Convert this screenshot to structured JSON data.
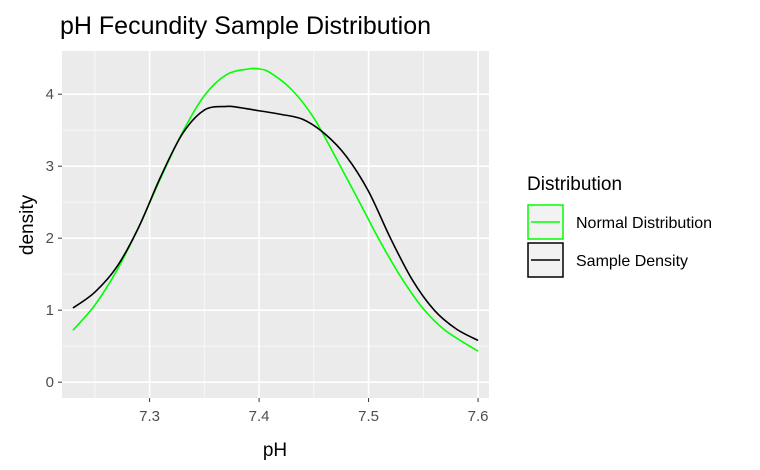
{
  "chart_data": {
    "type": "line",
    "title": "pH Fecundity Sample Distribution",
    "xlabel": "pH",
    "ylabel": "density",
    "xlim": [
      7.22,
      7.61
    ],
    "ylim": [
      -0.22,
      4.6
    ],
    "xticks": [
      7.3,
      7.4,
      7.5,
      7.6
    ],
    "xtick_labels": [
      "7.3",
      "7.4",
      "7.5",
      "7.6"
    ],
    "yticks": [
      0,
      1,
      2,
      3,
      4
    ],
    "ytick_labels": [
      "0",
      "1",
      "2",
      "3",
      "4"
    ],
    "grid": true,
    "legend": {
      "title": "Distribution",
      "placement": "right",
      "entries": [
        "Normal Distribution",
        "Sample Density"
      ]
    },
    "series": [
      {
        "name": "Normal Distribution",
        "color": "#00ff00",
        "x": [
          7.23,
          7.25,
          7.27,
          7.29,
          7.31,
          7.33,
          7.35,
          7.37,
          7.39,
          7.4,
          7.41,
          7.43,
          7.45,
          7.47,
          7.49,
          7.51,
          7.53,
          7.55,
          7.57,
          7.6
        ],
        "y": [
          0.72,
          1.07,
          1.55,
          2.15,
          2.83,
          3.47,
          3.98,
          4.27,
          4.35,
          4.35,
          4.3,
          4.06,
          3.67,
          3.12,
          2.55,
          1.97,
          1.45,
          1.02,
          0.72,
          0.43
        ]
      },
      {
        "name": "Sample Density",
        "color": "#000000",
        "x": [
          7.23,
          7.25,
          7.27,
          7.29,
          7.31,
          7.33,
          7.35,
          7.37,
          7.38,
          7.4,
          7.42,
          7.44,
          7.46,
          7.48,
          7.5,
          7.52,
          7.54,
          7.56,
          7.58,
          7.6
        ],
        "y": [
          1.03,
          1.25,
          1.6,
          2.15,
          2.85,
          3.45,
          3.78,
          3.83,
          3.82,
          3.77,
          3.72,
          3.65,
          3.45,
          3.13,
          2.65,
          2.0,
          1.42,
          1.0,
          0.74,
          0.58
        ]
      }
    ]
  }
}
